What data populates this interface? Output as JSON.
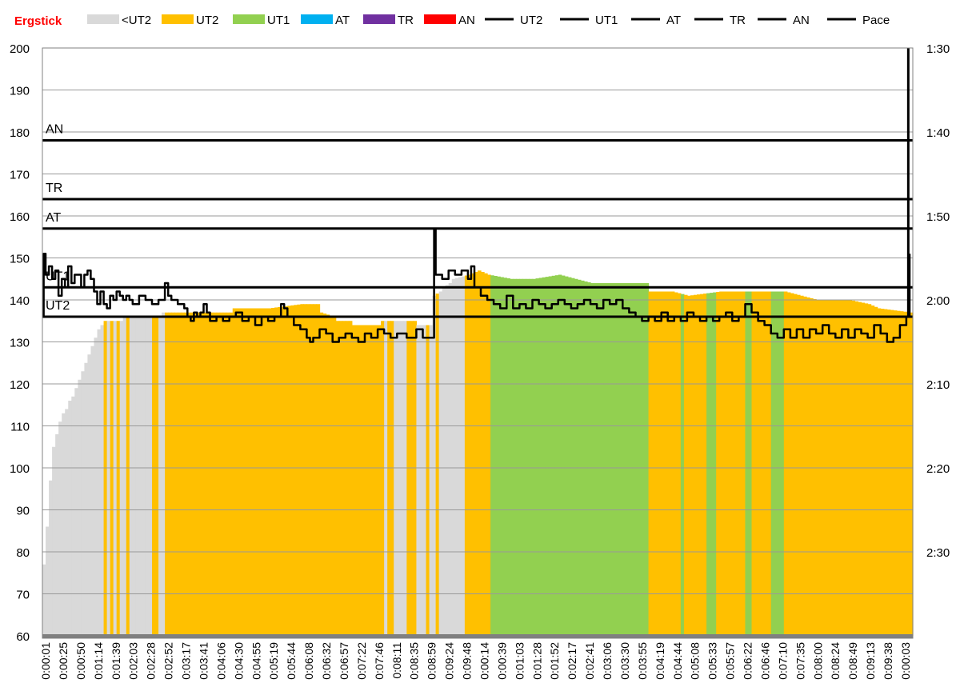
{
  "chart_data": {
    "type": "bar",
    "title": "Ergstick",
    "xlabel": "",
    "ylabel": "",
    "ylim": [
      60,
      200
    ],
    "yticks": [
      60,
      70,
      80,
      90,
      100,
      110,
      120,
      130,
      140,
      150,
      160,
      170,
      180,
      190,
      200
    ],
    "y2_ticks": [
      "1:30",
      "1:40",
      "1:50",
      "2:00",
      "2:10",
      "2:20",
      "2:30"
    ],
    "y2_range_seconds": [
      90,
      160
    ],
    "grid": true,
    "legend_position": "top",
    "legend": [
      {
        "label": "<UT2",
        "kind": "area",
        "color": "#d9d9d9"
      },
      {
        "label": "UT2",
        "kind": "area",
        "color": "#ffc000"
      },
      {
        "label": "UT1",
        "kind": "area",
        "color": "#92d050"
      },
      {
        "label": "AT",
        "kind": "area",
        "color": "#00b0f0"
      },
      {
        "label": "TR",
        "kind": "area",
        "color": "#7030a0"
      },
      {
        "label": "AN",
        "kind": "area",
        "color": "#ff0000"
      },
      {
        "label": "UT2",
        "kind": "line",
        "color": "#000000"
      },
      {
        "label": "UT1",
        "kind": "line",
        "color": "#000000"
      },
      {
        "label": "AT",
        "kind": "line",
        "color": "#000000"
      },
      {
        "label": "TR",
        "kind": "line",
        "color": "#000000"
      },
      {
        "label": "AN",
        "kind": "line",
        "color": "#000000"
      },
      {
        "label": "Pace",
        "kind": "line",
        "color": "#000000"
      }
    ],
    "zone_colors": {
      "<UT2": "#d9d9d9",
      "UT2": "#ffc000",
      "UT1": "#92d050"
    },
    "zone_lines": [
      {
        "name": "AN",
        "value": 178
      },
      {
        "name": "TR",
        "value": 164
      },
      {
        "name": "AT",
        "value": 157
      },
      {
        "name": "UT1",
        "value": 143
      },
      {
        "name": "UT2",
        "value": 136
      }
    ],
    "x_ticks": [
      "0:00:01",
      "0:00:25",
      "0:00:50",
      "0:01:14",
      "0:01:39",
      "0:02:03",
      "0:02:28",
      "0:02:52",
      "0:03:17",
      "0:03:41",
      "0:04:06",
      "0:04:30",
      "0:04:55",
      "0:05:19",
      "0:05:44",
      "0:06:08",
      "0:06:32",
      "0:06:57",
      "0:07:22",
      "0:07:46",
      "0:08:11",
      "0:08:35",
      "0:08:59",
      "0:09:24",
      "0:09:48",
      "0:00:14",
      "0:00:39",
      "0:01:03",
      "0:01:28",
      "0:01:52",
      "0:02:17",
      "0:02:41",
      "0:03:06",
      "0:03:30",
      "0:03:55",
      "0:04:19",
      "0:04:44",
      "0:05:08",
      "0:05:33",
      "0:05:57",
      "0:06:22",
      "0:06:46",
      "0:07:10",
      "0:07:35",
      "0:08:00",
      "0:08:24",
      "0:08:49",
      "0:09:13",
      "0:09:38",
      "0:00:03"
    ],
    "heart_rate_points": [
      [
        0,
        77
      ],
      [
        1,
        86
      ],
      [
        2,
        97
      ],
      [
        3,
        105
      ],
      [
        4,
        108
      ],
      [
        5,
        111
      ],
      [
        6,
        113
      ],
      [
        7,
        114
      ],
      [
        8,
        116
      ],
      [
        9,
        117
      ],
      [
        10,
        119
      ],
      [
        11,
        121
      ],
      [
        12,
        123
      ],
      [
        13,
        125
      ],
      [
        14,
        127
      ],
      [
        15,
        129
      ],
      [
        16,
        131
      ],
      [
        17,
        133
      ],
      [
        18,
        134
      ],
      [
        19,
        135
      ],
      [
        24,
        135
      ],
      [
        25,
        136
      ],
      [
        36,
        136
      ],
      [
        37,
        137
      ],
      [
        58,
        137
      ],
      [
        59,
        138
      ],
      [
        70,
        138
      ],
      [
        80,
        139
      ],
      [
        85,
        139
      ],
      [
        86,
        137
      ],
      [
        90,
        136
      ],
      [
        91,
        135
      ],
      [
        95,
        135
      ],
      [
        96,
        134
      ],
      [
        104,
        134
      ],
      [
        105,
        135
      ],
      [
        115,
        135
      ],
      [
        116,
        134
      ],
      [
        120,
        134
      ],
      [
        121,
        141
      ],
      [
        123,
        142
      ],
      [
        124,
        143
      ],
      [
        126,
        144
      ],
      [
        127,
        145
      ],
      [
        132,
        146
      ],
      [
        135,
        147
      ],
      [
        138,
        146
      ],
      [
        145,
        145
      ],
      [
        152,
        145
      ],
      [
        160,
        146
      ],
      [
        165,
        145
      ],
      [
        170,
        144
      ],
      [
        187,
        144
      ],
      [
        188,
        142
      ],
      [
        195,
        142
      ],
      [
        200,
        141
      ],
      [
        210,
        142
      ],
      [
        220,
        142
      ],
      [
        230,
        142
      ],
      [
        235,
        141
      ],
      [
        240,
        140
      ],
      [
        250,
        140
      ],
      [
        256,
        139
      ],
      [
        259,
        138
      ],
      [
        269,
        137
      ],
      [
        270,
        139
      ]
    ],
    "zone_segments": [
      [
        0,
        19,
        "<UT2"
      ],
      [
        19,
        20,
        "UT2"
      ],
      [
        20,
        21,
        "<UT2"
      ],
      [
        21,
        22,
        "UT2"
      ],
      [
        22,
        23,
        "<UT2"
      ],
      [
        23,
        24,
        "UT2"
      ],
      [
        24,
        26,
        "<UT2"
      ],
      [
        26,
        27,
        "UT2"
      ],
      [
        27,
        34,
        "<UT2"
      ],
      [
        34,
        36,
        "UT2"
      ],
      [
        36,
        38,
        "<UT2"
      ],
      [
        38,
        106,
        "UT2"
      ],
      [
        106,
        107,
        "<UT2"
      ],
      [
        107,
        109,
        "UT2"
      ],
      [
        109,
        113,
        "<UT2"
      ],
      [
        113,
        116,
        "UT2"
      ],
      [
        116,
        119,
        "<UT2"
      ],
      [
        119,
        120,
        "UT2"
      ],
      [
        120,
        122,
        "<UT2"
      ],
      [
        122,
        123,
        "UT2"
      ],
      [
        123,
        131,
        "<UT2"
      ],
      [
        131,
        139,
        "UT2"
      ],
      [
        139,
        188,
        "UT1"
      ],
      [
        188,
        198,
        "UT2"
      ],
      [
        198,
        199,
        "UT1"
      ],
      [
        199,
        206,
        "UT2"
      ],
      [
        206,
        209,
        "UT1"
      ],
      [
        209,
        218,
        "UT2"
      ],
      [
        218,
        220,
        "UT1"
      ],
      [
        220,
        226,
        "UT2"
      ],
      [
        226,
        230,
        "UT1"
      ],
      [
        230,
        270,
        "UT2"
      ]
    ],
    "pace_points": [
      [
        0,
        136
      ],
      [
        0.4,
        151
      ],
      [
        1,
        146
      ],
      [
        2,
        148
      ],
      [
        3,
        145
      ],
      [
        4,
        147
      ],
      [
        5,
        141
      ],
      [
        6,
        145
      ],
      [
        7,
        143
      ],
      [
        8,
        148
      ],
      [
        9,
        144
      ],
      [
        10,
        146
      ],
      [
        12,
        143
      ],
      [
        13,
        146
      ],
      [
        14,
        147
      ],
      [
        15,
        145
      ],
      [
        16,
        142
      ],
      [
        17,
        139
      ],
      [
        18,
        142
      ],
      [
        19,
        139
      ],
      [
        20,
        138
      ],
      [
        21,
        141
      ],
      [
        22,
        140
      ],
      [
        23,
        142
      ],
      [
        24,
        141
      ],
      [
        25,
        140
      ],
      [
        26,
        141
      ],
      [
        27,
        140
      ],
      [
        28,
        139
      ],
      [
        30,
        141
      ],
      [
        32,
        140
      ],
      [
        34,
        139
      ],
      [
        36,
        140
      ],
      [
        38,
        144
      ],
      [
        39,
        141
      ],
      [
        40,
        140
      ],
      [
        42,
        139
      ],
      [
        44,
        138
      ],
      [
        45,
        136
      ],
      [
        46,
        135
      ],
      [
        47,
        137
      ],
      [
        48,
        136
      ],
      [
        49,
        137
      ],
      [
        50,
        139
      ],
      [
        51,
        137
      ],
      [
        52,
        135
      ],
      [
        54,
        136
      ],
      [
        56,
        135
      ],
      [
        58,
        136
      ],
      [
        60,
        137
      ],
      [
        62,
        135
      ],
      [
        64,
        136
      ],
      [
        66,
        134
      ],
      [
        68,
        136
      ],
      [
        70,
        135
      ],
      [
        72,
        136
      ],
      [
        74,
        139
      ],
      [
        75,
        138
      ],
      [
        76,
        136
      ],
      [
        78,
        134
      ],
      [
        80,
        133
      ],
      [
        82,
        131
      ],
      [
        83,
        130
      ],
      [
        84,
        131
      ],
      [
        86,
        133
      ],
      [
        88,
        132
      ],
      [
        90,
        130
      ],
      [
        92,
        131
      ],
      [
        94,
        132
      ],
      [
        96,
        131
      ],
      [
        98,
        130
      ],
      [
        100,
        132
      ],
      [
        102,
        131
      ],
      [
        104,
        133
      ],
      [
        106,
        132
      ],
      [
        108,
        131
      ],
      [
        110,
        132
      ],
      [
        113,
        131
      ],
      [
        116,
        133
      ],
      [
        118,
        131
      ],
      [
        121,
        131
      ],
      [
        121.5,
        157
      ],
      [
        122,
        146
      ],
      [
        124,
        145
      ],
      [
        126,
        147
      ],
      [
        128,
        146
      ],
      [
        130,
        147
      ],
      [
        132,
        145
      ],
      [
        133,
        148
      ],
      [
        134,
        143
      ],
      [
        136,
        141
      ],
      [
        138,
        140
      ],
      [
        140,
        139
      ],
      [
        142,
        138
      ],
      [
        144,
        141
      ],
      [
        146,
        138
      ],
      [
        148,
        139
      ],
      [
        150,
        138
      ],
      [
        152,
        140
      ],
      [
        154,
        139
      ],
      [
        156,
        138
      ],
      [
        158,
        139
      ],
      [
        160,
        140
      ],
      [
        162,
        139
      ],
      [
        164,
        138
      ],
      [
        166,
        139
      ],
      [
        168,
        140
      ],
      [
        170,
        139
      ],
      [
        172,
        138
      ],
      [
        174,
        140
      ],
      [
        176,
        139
      ],
      [
        178,
        140
      ],
      [
        180,
        138
      ],
      [
        182,
        137
      ],
      [
        184,
        136
      ],
      [
        186,
        135
      ],
      [
        188,
        136
      ],
      [
        190,
        135
      ],
      [
        192,
        137
      ],
      [
        194,
        135
      ],
      [
        196,
        136
      ],
      [
        198,
        135
      ],
      [
        200,
        137
      ],
      [
        202,
        136
      ],
      [
        204,
        135
      ],
      [
        206,
        136
      ],
      [
        208,
        135
      ],
      [
        210,
        136
      ],
      [
        212,
        137
      ],
      [
        214,
        135
      ],
      [
        216,
        136
      ],
      [
        218,
        139
      ],
      [
        220,
        137
      ],
      [
        222,
        135
      ],
      [
        224,
        134
      ],
      [
        226,
        132
      ],
      [
        228,
        131
      ],
      [
        230,
        133
      ],
      [
        232,
        131
      ],
      [
        234,
        133
      ],
      [
        236,
        131
      ],
      [
        238,
        133
      ],
      [
        240,
        132
      ],
      [
        242,
        134
      ],
      [
        244,
        132
      ],
      [
        246,
        131
      ],
      [
        248,
        133
      ],
      [
        250,
        131
      ],
      [
        252,
        133
      ],
      [
        254,
        132
      ],
      [
        256,
        131
      ],
      [
        258,
        134
      ],
      [
        260,
        132
      ],
      [
        262,
        130
      ],
      [
        264,
        131
      ],
      [
        266,
        134
      ],
      [
        268,
        136
      ],
      [
        269,
        151
      ]
    ],
    "pace_spike_end": [
      268.6,
      200
    ]
  }
}
